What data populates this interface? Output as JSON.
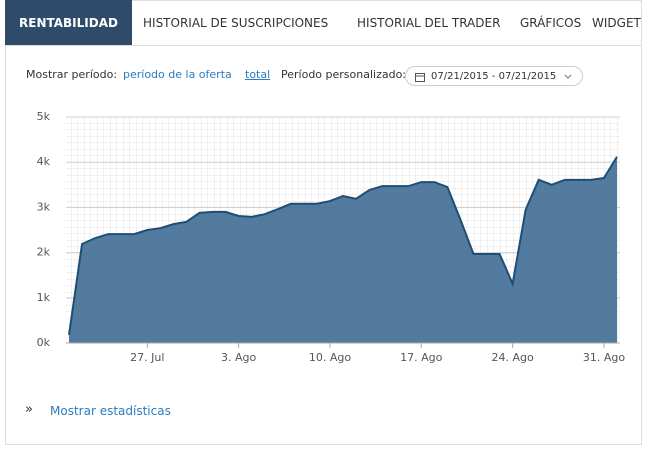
{
  "tabs": [
    "RENTABILIDAD",
    "HISTORIAL DE SUSCRIPCIONES",
    "HISTORIAL DEL TRADER",
    "GRÁFICOS",
    "WIDGET"
  ],
  "period": {
    "label": "Mostrar período:",
    "offer": "período de la oferta",
    "total": "total",
    "custom_label": "Período personalizado:",
    "date_range": "07/21/2015 - 07/21/2015"
  },
  "chart_data": {
    "type": "area",
    "categories": [
      null,
      null,
      null,
      null,
      null,
      null,
      "27. Jul",
      null,
      null,
      null,
      null,
      null,
      null,
      "3. Ago",
      null,
      null,
      null,
      null,
      null,
      null,
      "10. Ago",
      null,
      null,
      null,
      null,
      null,
      null,
      "17. Ago",
      null,
      null,
      null,
      null,
      null,
      null,
      "24. Ago",
      null,
      null,
      null,
      null,
      null,
      null,
      "31. Ago",
      null
    ],
    "values": [
      180,
      2190,
      2320,
      2410,
      2410,
      2410,
      2500,
      2540,
      2630,
      2680,
      2880,
      2900,
      2900,
      2810,
      2790,
      2850,
      2960,
      3080,
      3080,
      3080,
      3140,
      3250,
      3190,
      3380,
      3470,
      3470,
      3470,
      3560,
      3560,
      3450,
      2730,
      1970,
      1970,
      1970,
      1310,
      2950,
      3610,
      3500,
      3610,
      3610,
      3610,
      3650,
      4120
    ],
    "color": "#3f6d95",
    "line_color": "#1f4e73",
    "ylim": [
      0,
      5000
    ],
    "yticks": [
      {
        "value": 0,
        "label": "0k"
      },
      {
        "value": 1000,
        "label": "1k"
      },
      {
        "value": 2000,
        "label": "2k"
      },
      {
        "value": 3000,
        "label": "3k"
      },
      {
        "value": 4000,
        "label": "4k"
      },
      {
        "value": 5000,
        "label": "5k"
      }
    ],
    "grid": true
  },
  "stats_link": "Mostrar estadísticas"
}
